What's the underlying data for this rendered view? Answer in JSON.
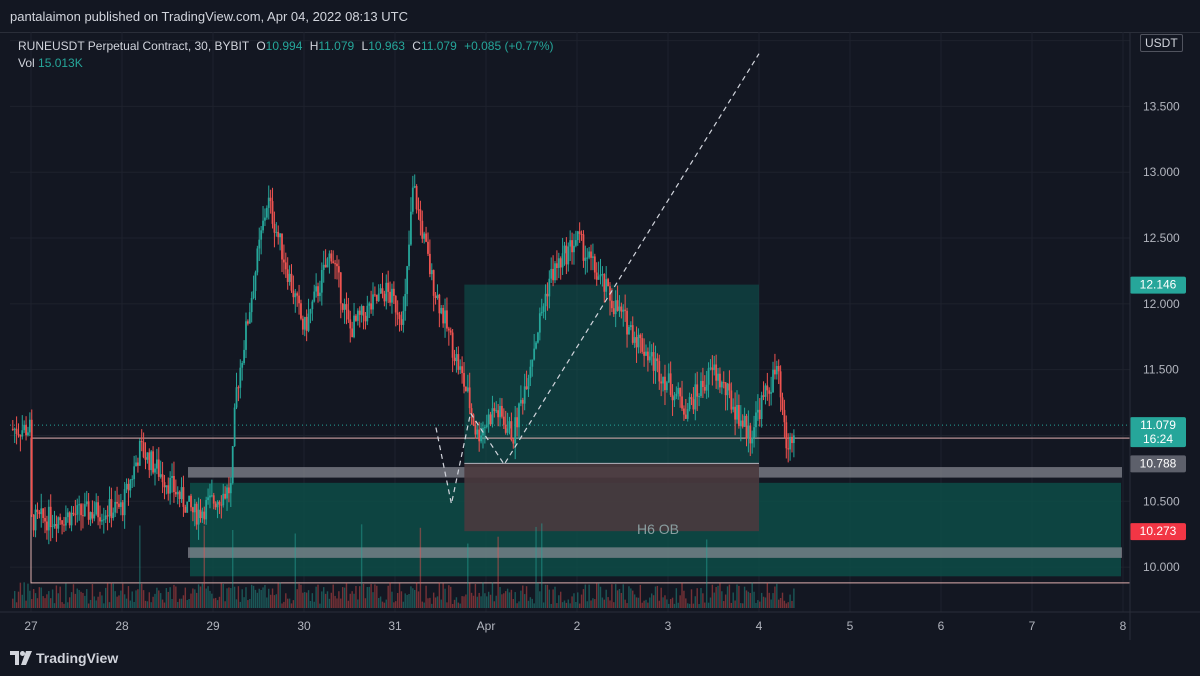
{
  "header": {
    "published": "pantalaimon published on TradingView.com, Apr 04, 2022 08:13 UTC"
  },
  "legend": {
    "symbol": "RUNEUSDT Perpetual Contract, 30, BYBIT",
    "o_label": "O",
    "o": "10.994",
    "h_label": "H",
    "h": "11.079",
    "l_label": "L",
    "l": "10.963",
    "c_label": "C",
    "c": "11.079",
    "change": "+0.085 (+0.77%)",
    "vol_label": "Vol",
    "vol": "15.013K"
  },
  "currency_badge": "USDT",
  "footer": {
    "brand": "TradingView"
  },
  "colors": {
    "up": "#26a69a",
    "down": "#ef5350",
    "bg": "#131722",
    "grid": "#1e222d",
    "tp_zone": "#0d5752",
    "sl_zone": "#4a3a3e",
    "ob_zone": "#0d4c47"
  },
  "chart_data": {
    "type": "candlestick",
    "x_ticks": [
      "27",
      "28",
      "29",
      "30",
      "31",
      "Apr",
      "2",
      "3",
      "4",
      "5",
      "6",
      "7",
      "8"
    ],
    "y_ticks": [
      "10.000",
      "10.500",
      "11.000",
      "11.500",
      "12.000",
      "12.500",
      "13.000",
      "13.500",
      "14.000"
    ],
    "ylim": [
      9.75,
      14.05
    ],
    "price_labels": [
      {
        "value": "12.146",
        "color": "#26a69a"
      },
      {
        "value": "11.079",
        "sub": "16:24",
        "color": "#26a69a"
      },
      {
        "value": "10.788",
        "color": "#5d606b"
      },
      {
        "value": "10.273",
        "color": "#f23645"
      }
    ],
    "annotations": [
      {
        "text": "H6 OB"
      }
    ],
    "trajectory": [
      [
        4.45,
        11.06
      ],
      [
        4.62,
        10.48
      ],
      [
        4.83,
        11.17
      ],
      [
        5.2,
        10.78
      ],
      [
        8.0,
        13.9
      ]
    ],
    "position": {
      "entry": 10.788,
      "target": 12.146,
      "stop": 10.273,
      "x_from": 4.85,
      "x_to": 8.0
    },
    "key_levels": [
      10.98,
      10.72,
      10.12,
      9.88
    ]
  }
}
